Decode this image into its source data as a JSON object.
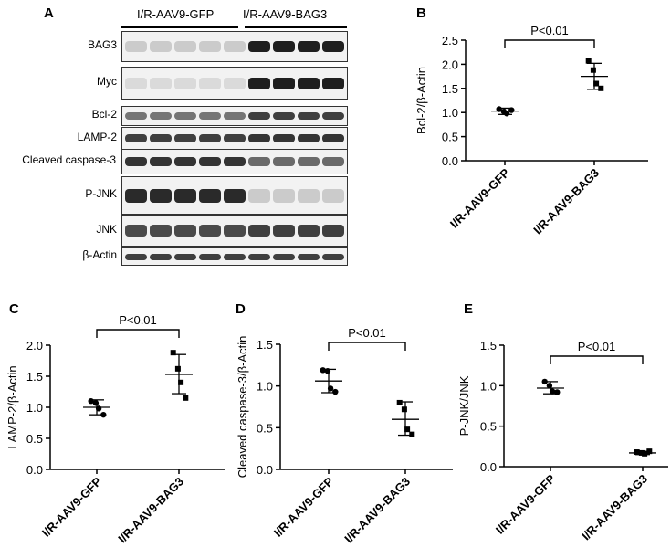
{
  "panel_letters": [
    "A",
    "B",
    "C",
    "D",
    "E"
  ],
  "blot": {
    "groups": [
      "I/R-AAV9-GFP",
      "I/R-AAV9-BAG3"
    ],
    "rows": [
      {
        "label": "BAG3",
        "gfp_intensity": 0.15,
        "bag3_intensity": 0.95
      },
      {
        "label": "Myc",
        "gfp_intensity": 0.08,
        "bag3_intensity": 0.95
      },
      {
        "label": "Bcl-2",
        "gfp_intensity": 0.55,
        "bag3_intensity": 0.8
      },
      {
        "label": "LAMP-2",
        "gfp_intensity": 0.8,
        "bag3_intensity": 0.85
      },
      {
        "label": "Cleaved caspase-3",
        "gfp_intensity": 0.85,
        "bag3_intensity": 0.6
      },
      {
        "label": "P-JNK",
        "gfp_intensity": 0.9,
        "bag3_intensity": 0.15
      },
      {
        "label": "JNK",
        "gfp_intensity": 0.75,
        "bag3_intensity": 0.8
      },
      {
        "label": "β-Actin",
        "gfp_intensity": 0.8,
        "bag3_intensity": 0.8
      }
    ]
  },
  "chart_data": [
    {
      "panel": "B",
      "type": "scatter",
      "ylabel": "Bcl-2/β-Actin",
      "categories": [
        "I/R-AAV9-GFP",
        "I/R-AAV9-BAG3"
      ],
      "ylim": [
        0,
        2.5
      ],
      "yticks": [
        "0.0",
        "0.5",
        "1.0",
        "1.5",
        "2.0",
        "2.5"
      ],
      "groups": [
        {
          "marker": "circle",
          "points": [
            1.07,
            1.02,
            0.98,
            1.05
          ],
          "mean": 1.03,
          "sd_low": 0.96,
          "sd_high": 1.09
        },
        {
          "marker": "square",
          "points": [
            2.07,
            1.88,
            1.6,
            1.5
          ],
          "mean": 1.75,
          "sd_low": 1.48,
          "sd_high": 2.02
        }
      ],
      "significance": "P<0.01"
    },
    {
      "panel": "C",
      "type": "scatter",
      "ylabel": "LAMP-2/β-Actin",
      "categories": [
        "I/R-AAV9-GFP",
        "I/R-AAV9-BAG3"
      ],
      "ylim": [
        0,
        2.0
      ],
      "yticks": [
        "0.0",
        "0.5",
        "1.0",
        "1.5",
        "2.0"
      ],
      "groups": [
        {
          "marker": "circle",
          "points": [
            1.1,
            1.07,
            0.98,
            0.88
          ],
          "mean": 1.0,
          "sd_low": 0.88,
          "sd_high": 1.12
        },
        {
          "marker": "square",
          "points": [
            1.88,
            1.62,
            1.4,
            1.15
          ],
          "mean": 1.53,
          "sd_low": 1.22,
          "sd_high": 1.85
        }
      ],
      "significance": "P<0.01"
    },
    {
      "panel": "D",
      "type": "scatter",
      "ylabel": "Cleaved caspase-3/β-Actin",
      "categories": [
        "I/R-AAV9-GFP",
        "I/R-AAV9-BAG3"
      ],
      "ylim": [
        0,
        1.5
      ],
      "yticks": [
        "0.0",
        "0.5",
        "1.0",
        "1.5"
      ],
      "groups": [
        {
          "marker": "circle",
          "points": [
            1.19,
            1.18,
            0.97,
            0.93
          ],
          "mean": 1.06,
          "sd_low": 0.92,
          "sd_high": 1.2
        },
        {
          "marker": "square",
          "points": [
            0.8,
            0.72,
            0.48,
            0.42
          ],
          "mean": 0.6,
          "sd_low": 0.41,
          "sd_high": 0.81
        }
      ],
      "significance": "P<0.01"
    },
    {
      "panel": "E",
      "type": "scatter",
      "ylabel": "P-JNK/JNK",
      "categories": [
        "I/R-AAV9-GFP",
        "I/R-AAV9-BAG3"
      ],
      "ylim": [
        0,
        1.5
      ],
      "yticks": [
        "0.0",
        "0.5",
        "1.0",
        "1.5"
      ],
      "groups": [
        {
          "marker": "circle",
          "points": [
            1.05,
            1.0,
            0.93,
            0.92
          ],
          "mean": 0.97,
          "sd_low": 0.9,
          "sd_high": 1.05
        },
        {
          "marker": "square",
          "points": [
            0.18,
            0.17,
            0.16,
            0.19
          ],
          "mean": 0.17,
          "sd_low": 0.15,
          "sd_high": 0.19
        }
      ],
      "significance": "P<0.01"
    }
  ]
}
